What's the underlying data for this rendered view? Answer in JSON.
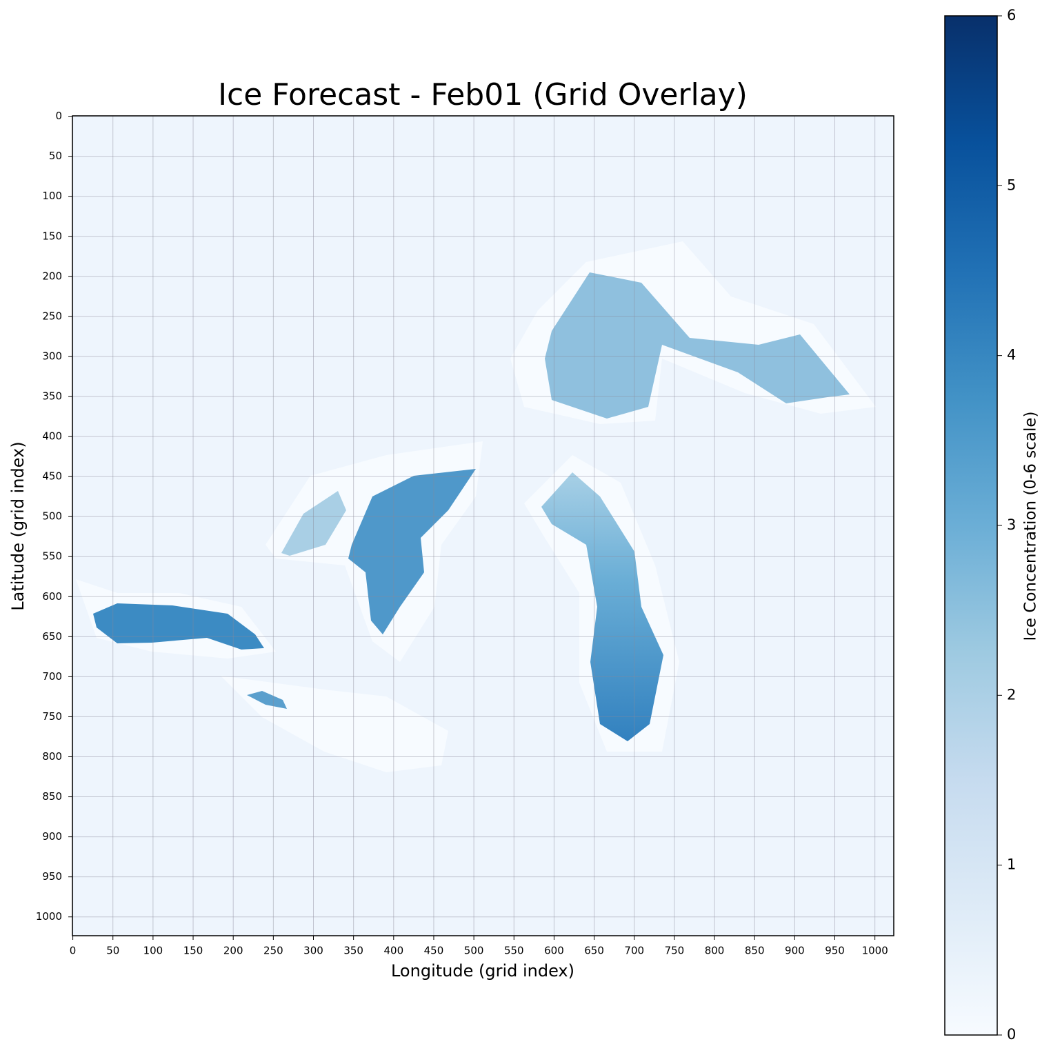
{
  "chart_data": {
    "type": "heatmap",
    "title": "Ice Forecast - Feb01 (Grid Overlay)",
    "x_label": "Longitude (grid index)",
    "y_label": "Latitude (grid index)",
    "xlim": [
      -0.5,
      1023.5
    ],
    "ylim": [
      1023.5,
      -0.5
    ],
    "xticks": [
      0,
      50,
      100,
      150,
      200,
      250,
      300,
      350,
      400,
      450,
      500,
      550,
      600,
      650,
      700,
      750,
      800,
      850,
      900,
      950,
      1000
    ],
    "yticks": [
      0,
      50,
      100,
      150,
      200,
      250,
      300,
      350,
      400,
      450,
      500,
      550,
      600,
      650,
      700,
      750,
      800,
      850,
      900,
      950,
      1000
    ],
    "grid": true,
    "colorbar": {
      "label": "Ice Concentration (0-6 scale)",
      "lim": [
        0,
        6
      ],
      "ticks": [
        0,
        1,
        2,
        3,
        4,
        5,
        6
      ],
      "colormap": [
        "#f7fbff",
        "#deebf7",
        "#c6dbef",
        "#9ecae1",
        "#6baed6",
        "#4292c6",
        "#2171b5",
        "#08519c",
        "#08306b"
      ]
    }
  }
}
